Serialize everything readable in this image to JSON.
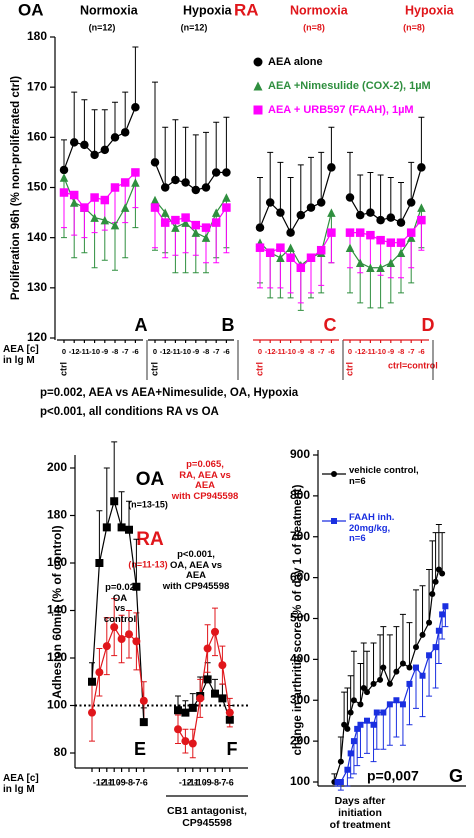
{
  "chart_data": [
    {
      "type": "dot-panels",
      "y_label": "Proliferation 96h (% non-proliferated ctrl)",
      "ylim": [
        120,
        180
      ],
      "yticks": [
        120,
        130,
        140,
        150,
        160,
        170,
        180
      ],
      "x_label": "AEA [c]\nin lg M",
      "categories": [
        "0",
        "-12",
        "-11",
        "-10",
        "-9",
        "-8",
        "-7",
        "-6"
      ],
      "ctrl_label": "ctrl",
      "ctrl_note": "ctrl=control",
      "series": [
        {
          "name": "AEA alone",
          "color": "#000000",
          "marker": "circle",
          "error_direction": "up"
        },
        {
          "name": "AEA +Nimesulide (COX-2), 1µM",
          "color": "#2f8f3f",
          "marker": "triangle",
          "error_direction": "down"
        },
        {
          "name": "AEA + URB597 (FAAH), 1µM",
          "color": "#ff00ff",
          "marker": "square",
          "error_direction": "down"
        }
      ],
      "groups": [
        {
          "name": "OA",
          "color": "#000000",
          "panels": [
            {
              "condition": "Normoxia",
              "n": "(n=12)",
              "letter": "A",
              "data": [
                {
                  "values": [
                    153.5,
                    159,
                    158.5,
                    156.5,
                    157.5,
                    160,
                    161,
                    166
                  ],
                  "errors": [
                    6,
                    10,
                    9,
                    9,
                    8,
                    7,
                    8,
                    12
                  ]
                },
                {
                  "values": [
                    152,
                    147,
                    146,
                    144,
                    143.5,
                    142.5,
                    146,
                    151
                  ],
                  "errors": [
                    12,
                    11,
                    9,
                    10,
                    8,
                    9,
                    10,
                    9
                  ]
                },
                {
                  "values": [
                    149,
                    148.5,
                    146,
                    148,
                    147.5,
                    150,
                    151,
                    153
                  ],
                  "errors": [
                    7,
                    8,
                    6,
                    7,
                    6,
                    7,
                    8,
                    7
                  ]
                }
              ]
            },
            {
              "condition": "Hypoxia",
              "n": "(n=12)",
              "letter": "B",
              "data": [
                {
                  "values": [
                    155,
                    150,
                    151.5,
                    151,
                    149.5,
                    150,
                    153,
                    153
                  ],
                  "errors": [
                    16,
                    12,
                    12,
                    11,
                    11,
                    11,
                    10,
                    11
                  ]
                },
                {
                  "values": [
                    147.5,
                    145,
                    142,
                    143,
                    141,
                    140,
                    145,
                    148
                  ],
                  "errors": [
                    10,
                    8,
                    9,
                    10,
                    8,
                    7,
                    9,
                    10
                  ]
                },
                {
                  "values": [
                    146,
                    143,
                    143.5,
                    144,
                    142.5,
                    142,
                    143,
                    146
                  ],
                  "errors": [
                    8,
                    7,
                    7,
                    7,
                    6,
                    7,
                    8,
                    9
                  ]
                }
              ]
            }
          ]
        },
        {
          "name": "RA",
          "color": "#e0161b",
          "panels": [
            {
              "condition": "Normoxia",
              "n": "(n=8)",
              "letter": "C",
              "data": [
                {
                  "values": [
                    142,
                    147,
                    145,
                    141,
                    144.5,
                    146,
                    147,
                    154
                  ],
                  "errors": [
                    10,
                    10,
                    10,
                    11,
                    10,
                    10,
                    10,
                    8
                  ]
                },
                {
                  "values": [
                    139,
                    137,
                    136,
                    138,
                    134.5,
                    136,
                    137,
                    145
                  ],
                  "errors": [
                    8,
                    9,
                    8,
                    10,
                    9,
                    8,
                    8,
                    10
                  ]
                },
                {
                  "values": [
                    138,
                    137,
                    138,
                    136,
                    134,
                    136,
                    137.5,
                    141
                  ],
                  "errors": [
                    8,
                    7,
                    8,
                    7,
                    7,
                    7,
                    7,
                    6
                  ]
                }
              ]
            },
            {
              "condition": "Hypoxia",
              "n": "(n=8)",
              "letter": "D",
              "data": [
                {
                  "values": [
                    148,
                    144.5,
                    145,
                    143.5,
                    144,
                    143,
                    147,
                    154
                  ],
                  "errors": [
                    9,
                    8,
                    8,
                    9,
                    8,
                    8,
                    8,
                    10
                  ]
                },
                {
                  "values": [
                    138,
                    135,
                    134,
                    134,
                    135,
                    137,
                    140,
                    146
                  ],
                  "errors": [
                    9,
                    8,
                    8,
                    8,
                    8,
                    8,
                    9,
                    8
                  ]
                },
                {
                  "values": [
                    141,
                    141,
                    140.5,
                    139.5,
                    139,
                    139,
                    141,
                    143.5
                  ],
                  "errors": [
                    7,
                    8,
                    7,
                    7,
                    7,
                    7,
                    7,
                    6
                  ]
                }
              ]
            }
          ]
        }
      ],
      "notes": [
        "p=0.002, AEA vs AEA+Nimesulide, OA, Hypoxia",
        "p<0.001, all conditions RA vs OA"
      ]
    },
    {
      "type": "line",
      "y_label": "Adhesion 60min (% of control)",
      "ylim": [
        80,
        200
      ],
      "yticks": [
        80,
        100,
        120,
        140,
        160,
        180,
        200
      ],
      "x_label": "AEA [c]\nin lg M",
      "categories": [
        null,
        "-12",
        "-11",
        "-10",
        "-9",
        "-8",
        "-7",
        "-6"
      ],
      "reference_line": 100,
      "series": [
        {
          "name": "OA",
          "n": "(n=13-15)",
          "color": "#000000",
          "marker": "square",
          "error_direction": "up"
        },
        {
          "name": "RA",
          "n": "(n=11-13)",
          "color": "#e0161b",
          "marker": "circle",
          "error_direction": "both"
        }
      ],
      "panels": [
        {
          "letter": "E",
          "data": [
            {
              "values": [
                110,
                160,
                175,
                186,
                175,
                174,
                150,
                93
              ],
              "errors": [
                8,
                22,
                25,
                25,
                15,
                12,
                20,
                6
              ]
            },
            {
              "values": [
                97,
                114,
                125,
                133,
                128,
                130,
                127,
                102
              ],
              "errors": [
                12,
                10,
                12,
                12,
                10,
                10,
                12,
                8
              ]
            }
          ]
        },
        {
          "letter": "F",
          "caption": "CB1 antagonist,\nCP945598",
          "data": [
            {
              "values": [
                98,
                97,
                99,
                104,
                111,
                105,
                103,
                94
              ],
              "errors": [
                6,
                5,
                6,
                8,
                7,
                6,
                6,
                6
              ]
            },
            {
              "values": [
                90,
                85,
                84,
                103,
                124,
                131,
                117,
                97
              ],
              "errors": [
                6,
                5,
                6,
                8,
                10,
                10,
                8,
                6
              ]
            }
          ]
        }
      ],
      "annotations": [
        {
          "text": "p=0.065,\nRA, AEA vs\nAEA\nwith CP945598",
          "color": "#e0161b"
        },
        {
          "text": "p=0.02\nOA\nvs\ncontrol",
          "color": "#000000"
        },
        {
          "text": "p<0.001,\nOA, AEA vs\nAEA\nwith CP945598",
          "color": "#000000"
        }
      ]
    },
    {
      "type": "line",
      "x_label": "Days after\ninitiation\nof treatment",
      "y_label": "change in arthritic score (% of day 1 of treatment)",
      "xlim": [
        -5,
        40
      ],
      "ylim": [
        100,
        900
      ],
      "yticks": [
        100,
        200,
        300,
        400,
        500,
        600,
        700,
        800,
        900
      ],
      "series": [
        {
          "name": "vehicle control,\nn=6",
          "color": "#000000",
          "marker": "circle",
          "error_direction": "up",
          "x": [
            0,
            2,
            3,
            4,
            5,
            6,
            8,
            9,
            10,
            12,
            14,
            15,
            17,
            19,
            21,
            23,
            25,
            27,
            29,
            30,
            31,
            32,
            33
          ],
          "values": [
            100,
            150,
            240,
            230,
            270,
            300,
            290,
            330,
            320,
            340,
            350,
            380,
            340,
            370,
            390,
            380,
            430,
            460,
            490,
            560,
            590,
            620,
            610
          ],
          "errors": [
            20,
            60,
            80,
            100,
            90,
            120,
            100,
            110,
            100,
            100,
            110,
            100,
            120,
            110,
            120,
            110,
            140,
            120,
            130,
            130,
            120,
            110,
            100
          ]
        },
        {
          "name": "FAAH inh.\n20mg/kg,\nn=6",
          "color": "#1a2fe0",
          "marker": "square",
          "error_direction": "down",
          "x": [
            1,
            2,
            4,
            5,
            6,
            7,
            8,
            10,
            12,
            13,
            15,
            17,
            19,
            21,
            23,
            25,
            27,
            29,
            31,
            32,
            33,
            34
          ],
          "values": [
            100,
            100,
            130,
            170,
            200,
            230,
            240,
            250,
            240,
            270,
            270,
            290,
            300,
            290,
            340,
            380,
            360,
            410,
            430,
            470,
            510,
            530
          ],
          "errors": [
            10,
            20,
            40,
            60,
            80,
            90,
            80,
            80,
            90,
            90,
            90,
            100,
            90,
            100,
            100,
            100,
            100,
            100,
            100,
            80,
            60,
            50
          ]
        }
      ],
      "annotation": "p=0,007",
      "letter": "G"
    }
  ]
}
